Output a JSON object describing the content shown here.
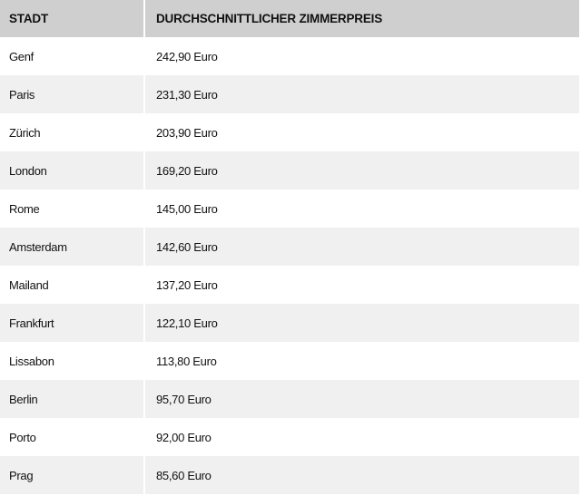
{
  "table": {
    "headers": {
      "city": "STADT",
      "price": "DURCHSCHNITTLICHER ZIMMERPREIS"
    },
    "rows": [
      {
        "city": "Genf",
        "price": "242,90 Euro"
      },
      {
        "city": "Paris",
        "price": "231,30 Euro"
      },
      {
        "city": "Zürich",
        "price": "203,90 Euro"
      },
      {
        "city": "London",
        "price": "169,20 Euro"
      },
      {
        "city": "Rome",
        "price": "145,00 Euro"
      },
      {
        "city": "Amsterdam",
        "price": "142,60 Euro"
      },
      {
        "city": "Mailand",
        "price": "137,20 Euro"
      },
      {
        "city": "Frankfurt",
        "price": "122,10 Euro"
      },
      {
        "city": "Lissabon",
        "price": "113,80 Euro"
      },
      {
        "city": "Berlin",
        "price": "95,70 Euro"
      },
      {
        "city": "Porto",
        "price": "92,00 Euro"
      },
      {
        "city": "Prag",
        "price": "85,60 Euro"
      }
    ]
  },
  "colors": {
    "header_bg": "#cfcfcf",
    "row_odd_bg": "#ffffff",
    "row_even_bg": "#f0f0f0",
    "text": "#111111"
  }
}
